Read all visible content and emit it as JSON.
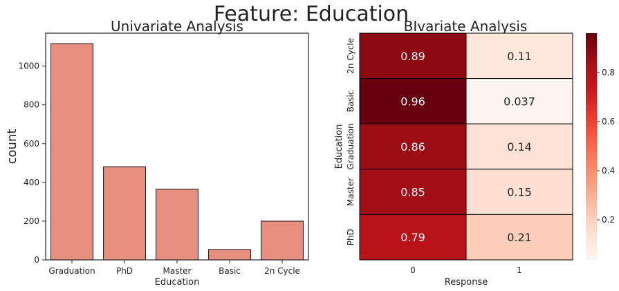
{
  "suptitle": "Feature: Education",
  "chart_data": [
    {
      "type": "bar",
      "title": "Univariate Analysis",
      "xlabel": "Education",
      "ylabel": "count",
      "categories": [
        "Graduation",
        "PhD",
        "Master",
        "Basic",
        "2n Cycle"
      ],
      "values": [
        1116,
        481,
        365,
        54,
        200
      ],
      "ylim": [
        0,
        1170
      ],
      "yticks": [
        0,
        200,
        400,
        600,
        800,
        1000
      ],
      "bar_color": "#e8907f",
      "grid": false
    },
    {
      "type": "heatmap",
      "title": "BIvariate Analysis",
      "xlabel": "Response",
      "ylabel": "Education",
      "x_categories": [
        "0",
        "1"
      ],
      "y_categories": [
        "2n Cycle",
        "Basic",
        "Graduation",
        "Master",
        "PhD"
      ],
      "values": [
        [
          0.89,
          0.11
        ],
        [
          0.96,
          0.037
        ],
        [
          0.86,
          0.14
        ],
        [
          0.85,
          0.15
        ],
        [
          0.79,
          0.21
        ]
      ],
      "value_labels": [
        [
          "0.89",
          "0.11"
        ],
        [
          "0.96",
          "0.037"
        ],
        [
          "0.86",
          "0.14"
        ],
        [
          "0.85",
          "0.15"
        ],
        [
          "0.79",
          "0.21"
        ]
      ],
      "colormap": "Reds",
      "colorbar": {
        "range": [
          0.037,
          0.96
        ],
        "ticks": [
          0.2,
          0.4,
          0.6,
          0.8
        ],
        "tick_labels": [
          "0.2",
          "0.4",
          "0.6",
          "0.8"
        ]
      }
    }
  ]
}
